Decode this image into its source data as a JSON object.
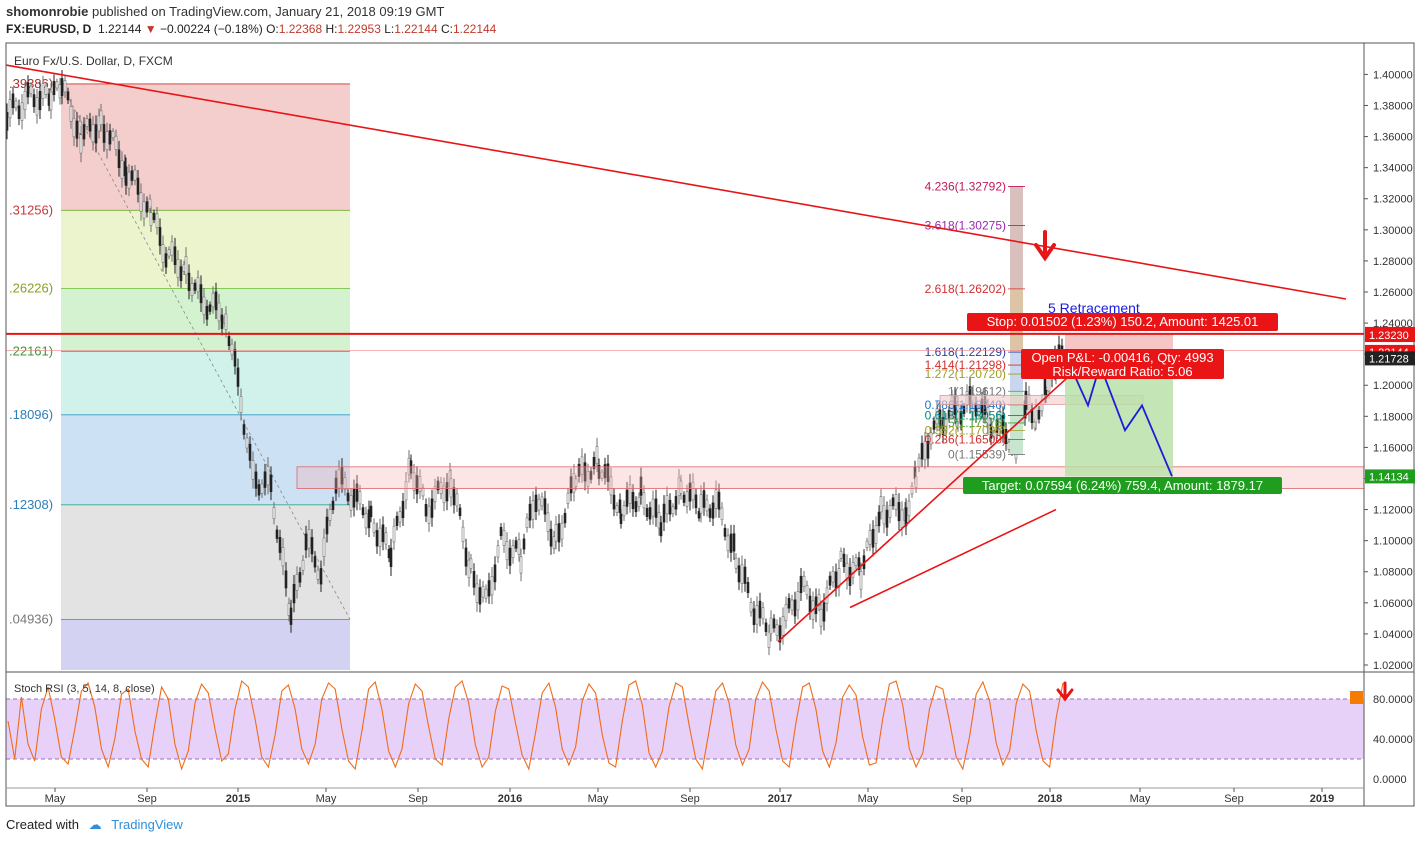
{
  "header": {
    "author": "shomonrobie",
    "published": "published on TradingView.com, January 21, 2018 09:19 GMT",
    "symbol": "FX:EURUSD, D",
    "last": "1.22144",
    "change": "−0.00224 (−0.18%)",
    "open_label": "O:",
    "open": "1.22368",
    "high_label": "H:",
    "high": "1.22953",
    "low_label": "L:",
    "low": "1.22144",
    "close_label": "C:",
    "close": "1.22144"
  },
  "footer": {
    "created_with": "Created with",
    "brand": "TradingView"
  },
  "colors": {
    "trend": "#e81416",
    "forecast": "#1c1cdc",
    "stoch": "#ef6c1a",
    "stoch_band": "#d9b3f5",
    "up_candle": "#6f6f6f",
    "down_candle": "#222222"
  },
  "chart_data": [
    {
      "type": "line",
      "title": "Euro Fx/U.S. Dollar, D, FXCM",
      "price_ticks": [
        "1.40000",
        "1.38000",
        "1.36000",
        "1.34000",
        "1.32000",
        "1.30000",
        "1.28000",
        "1.26000",
        "1.24000",
        "1.22000",
        "1.20000",
        "1.18000",
        "1.16000",
        "1.14000",
        "1.12000",
        "1.10000",
        "1.08000",
        "1.06000",
        "1.04000",
        "1.02000"
      ],
      "x_ticks": [
        "May",
        "Sep",
        "2015",
        "May",
        "Sep",
        "2016",
        "May",
        "Sep",
        "2017",
        "May",
        "Sep",
        "2018",
        "May",
        "Sep",
        "2019"
      ],
      "fib_levels": [
        ".39386)",
        ".31256)",
        ".26226)",
        ".22161)",
        ".18096)",
        ".12308)",
        ".04936)"
      ],
      "fib_values": [
        1.39386,
        1.31256,
        1.26226,
        1.22161,
        1.18096,
        1.12308,
        1.04936
      ],
      "ext_levels": [
        {
          "text": "4.236(1.32792)",
          "value": 1.32792,
          "color": "#c2185b"
        },
        {
          "text": "3.618(1.30275)",
          "value": 1.30275,
          "color": "#9c27b0"
        },
        {
          "text": "2.618(1.26202)",
          "value": 1.26202,
          "color": "#d32f2f"
        },
        {
          "text": "1.618(1.22129)",
          "value": 1.22129,
          "color": "#303f9f"
        },
        {
          "text": "1.414(1.21298)",
          "value": 1.21298,
          "color": "#d32f2f"
        },
        {
          "text": "1.272(1.20720)",
          "value": 1.2072,
          "color": "#9e9d24"
        },
        {
          "text": "1(1.19612)",
          "value": 1.19612,
          "color": "#777777"
        },
        {
          "text": "0.786(1.18740)",
          "value": 1.1874,
          "color": "#1976d2"
        },
        {
          "text": "0.618(1.18056)",
          "value": 1.18056,
          "color": "#00897b"
        },
        {
          "text": "0.5(1.17576)",
          "value": 1.17576,
          "color": "#43a047"
        },
        {
          "text": "0.382(1.17095)",
          "value": 1.17095,
          "color": "#9e9d24"
        },
        {
          "text": "0.236(1.16500)",
          "value": 1.165,
          "color": "#d32f2f"
        },
        {
          "text": "0(1.15539)",
          "value": 1.15539,
          "color": "#777777"
        }
      ],
      "price_badges": [
        {
          "text": "1.23303",
          "value": 1.23303,
          "bg": "#e81416"
        },
        {
          "text": "1.23230",
          "value": 1.2323,
          "bg": "#e81416"
        },
        {
          "text": "1.22144",
          "value": 1.22144,
          "bg": "#e81416"
        },
        {
          "text": "1.21728",
          "value": 1.21728,
          "bg": "#222222"
        },
        {
          "text": "1.14134",
          "value": 1.14134,
          "bg": "#1e9d1e"
        }
      ],
      "stop_label": "Stop: 0.01502 (1.23%) 150.2, Amount: 1425.01",
      "pnl_label_1": "Open P&L: -0.00416, Qty: 4993",
      "pnl_label_2": "Risk/Reward Ratio: 5.06",
      "target_label": "Target: 0.07594 (6.24%) 759.4, Amount: 1879.17",
      "retracement_label": "5 Retracement",
      "forecast_path": [
        1.223,
        1.187,
        1.213,
        1.171,
        1.187,
        1.1414
      ],
      "trend_upper": [
        1.406,
        1.2555
      ],
      "support_line_1": [
        1.035,
        1.217
      ],
      "support_line_2": [
        1.057,
        1.12
      ],
      "resistance_level": 1.23303,
      "ylim": [
        1.01,
        1.41
      ]
    },
    {
      "type": "line",
      "title": "Stoch RSI (3, 5, 14, 8, close)",
      "y_ticks": [
        "80.0000",
        "40.0000",
        "0.0000"
      ],
      "band": [
        20,
        80
      ],
      "series": [
        {
          "values": [
            58,
            20,
            82,
            35,
            18,
            70,
            92,
            60,
            22,
            15,
            50,
            88,
            96,
            72,
            30,
            12,
            40,
            85,
            90,
            48,
            20,
            12,
            55,
            92,
            80,
            35,
            10,
            28,
            76,
            95,
            86,
            50,
            18,
            25,
            70,
            98,
            92,
            60,
            22,
            12,
            44,
            88,
            94,
            70,
            30,
            15,
            35,
            80,
            96,
            90,
            50,
            18,
            10,
            48,
            90,
            97,
            70,
            28,
            12,
            30,
            75,
            95,
            88,
            52,
            20,
            14,
            60,
            92,
            98,
            76,
            34,
            12,
            22,
            68,
            93,
            90,
            56,
            24,
            10,
            46,
            86,
            96,
            72,
            30,
            14,
            32,
            78,
            95,
            86,
            44,
            16,
            12,
            58,
            94,
            98,
            74,
            26,
            12,
            28,
            72,
            96,
            92,
            54,
            20,
            10,
            48,
            88,
            96,
            76,
            34,
            14,
            30,
            80,
            97,
            88,
            50,
            18,
            12,
            56,
            92,
            96,
            70,
            28,
            12,
            36,
            82,
            94,
            84,
            42,
            14,
            16,
            60,
            95,
            98,
            74,
            30,
            12,
            26,
            70,
            93,
            90,
            58,
            22,
            10,
            42,
            85,
            97,
            78,
            36,
            14,
            28,
            76,
            95,
            88,
            48,
            18,
            12,
            62,
            96
          ]
        }
      ]
    }
  ]
}
